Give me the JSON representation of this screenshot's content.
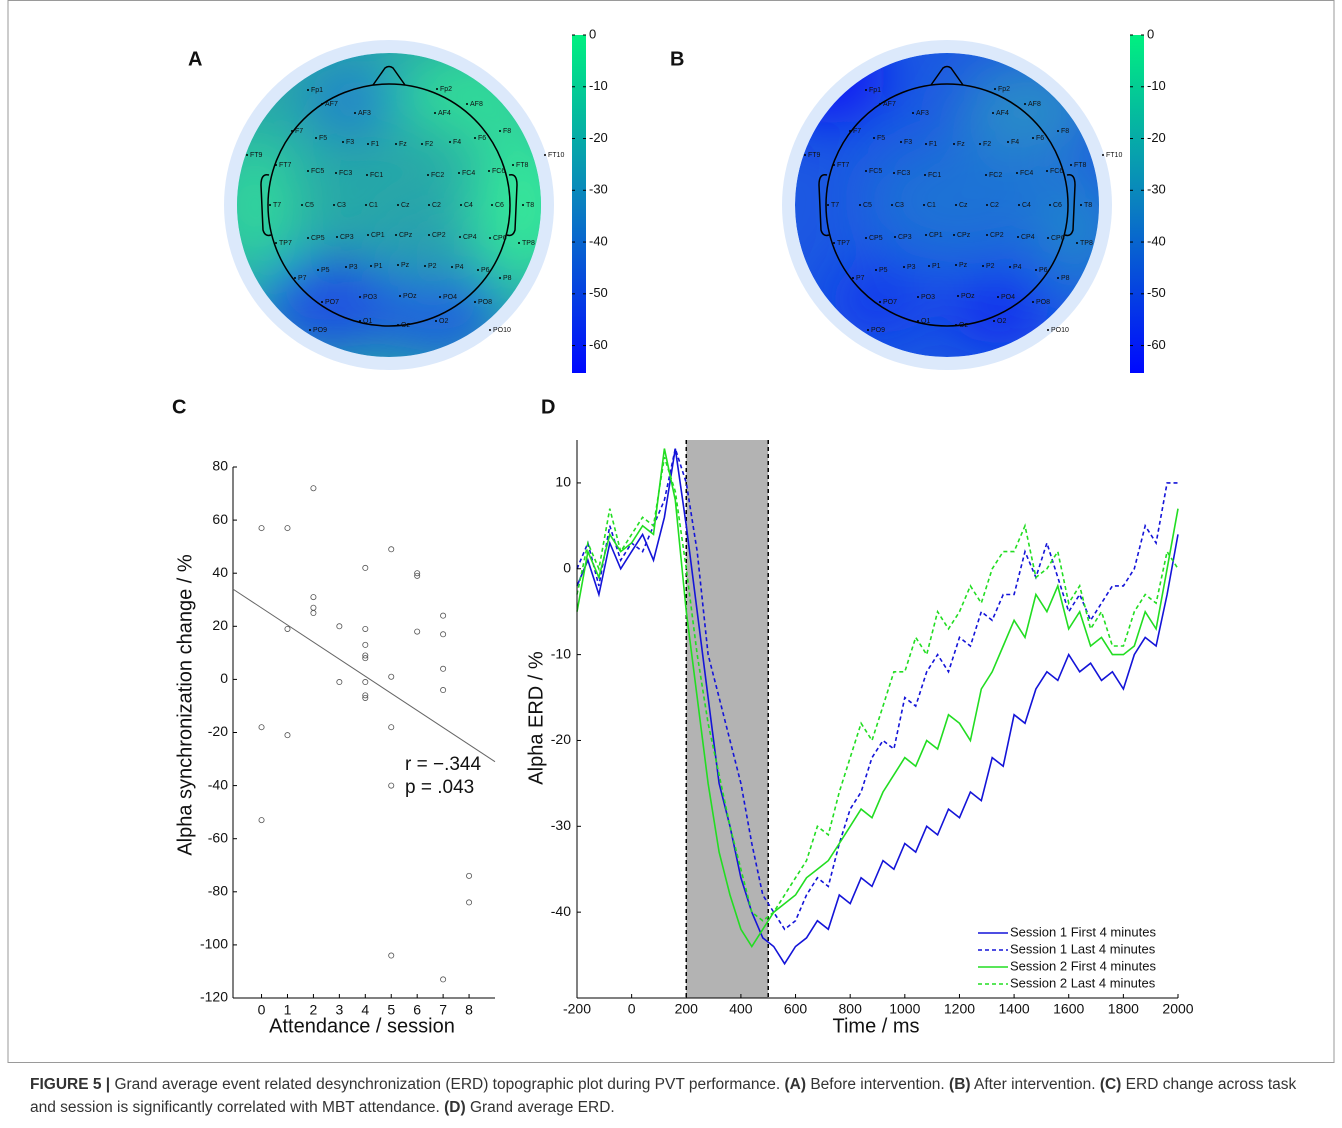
{
  "chart_data": [
    {
      "type": "topomap",
      "panel": "A",
      "clim": [
        -65.3,
        0
      ],
      "cticks": [
        0,
        -10,
        -20,
        -30,
        -40,
        -50,
        -60
      ],
      "electrodes": [
        "Fp1",
        "Fp2",
        "AF7",
        "AF3",
        "AF4",
        "AF8",
        "F7",
        "F5",
        "F3",
        "F1",
        "Fz",
        "F2",
        "F4",
        "F6",
        "F8",
        "FT9",
        "FT10",
        "FT7",
        "FC5",
        "FC3",
        "FC1",
        "FC2",
        "FC4",
        "FC6",
        "FT8",
        "T7",
        "C5",
        "C3",
        "C1",
        "Cz",
        "C2",
        "C4",
        "C6",
        "T8",
        "TP7",
        "CP5",
        "CP3",
        "CP1",
        "CPz",
        "CP2",
        "CP4",
        "CP6",
        "TP8",
        "P7",
        "P5",
        "P3",
        "P1",
        "Pz",
        "P2",
        "P4",
        "P6",
        "P8",
        "PO7",
        "PO3",
        "POz",
        "PO4",
        "PO8",
        "PO9",
        "O1",
        "Oz",
        "O2",
        "PO10"
      ]
    },
    {
      "type": "topomap",
      "panel": "B",
      "clim": [
        -65.3,
        0
      ],
      "cticks": [
        0,
        -10,
        -20,
        -30,
        -40,
        -50,
        -60
      ],
      "electrodes": [
        "Fp1",
        "Fp2",
        "AF7",
        "AF3",
        "AF4",
        "AF8",
        "F7",
        "F5",
        "F3",
        "F1",
        "Fz",
        "F2",
        "F4",
        "F6",
        "F8",
        "FT9",
        "FT10",
        "FT7",
        "FC5",
        "FC3",
        "FC1",
        "FC2",
        "FC4",
        "FC6",
        "FT8",
        "T7",
        "C5",
        "C3",
        "C1",
        "Cz",
        "C2",
        "C4",
        "C6",
        "T8",
        "TP7",
        "CP5",
        "CP3",
        "CP1",
        "CPz",
        "CP2",
        "CP4",
        "CP6",
        "TP8",
        "P7",
        "P5",
        "P3",
        "P1",
        "Pz",
        "P2",
        "P4",
        "P6",
        "P8",
        "PO7",
        "PO3",
        "POz",
        "PO4",
        "PO8",
        "PO9",
        "O1",
        "Oz",
        "O2",
        "PO10"
      ]
    },
    {
      "type": "scatter",
      "panel": "C",
      "xlabel": "Attendance / session",
      "ylabel": "Alpha synchronization change / %",
      "xlim": [
        -1.1,
        9
      ],
      "xticks": [
        0,
        1,
        2,
        3,
        4,
        5,
        6,
        7,
        8
      ],
      "ylim": [
        -120,
        80
      ],
      "yticks": [
        80,
        60,
        40,
        20,
        0,
        -20,
        -40,
        -60,
        -80,
        -100,
        -120
      ],
      "x": [
        0,
        0,
        0,
        1,
        1,
        1,
        2,
        2,
        2,
        2,
        3,
        3,
        4,
        4,
        4,
        4,
        4,
        4,
        4,
        4,
        5,
        5,
        5,
        5,
        5,
        6,
        6,
        6,
        7,
        7,
        7,
        7,
        7,
        8,
        8
      ],
      "y": [
        57,
        -18,
        -53,
        57,
        19,
        -21,
        72,
        31,
        27,
        25,
        20,
        -1,
        42,
        19,
        13,
        9,
        8,
        -1,
        -6,
        -7,
        49,
        1,
        -18,
        -40,
        -104,
        40,
        39,
        18,
        24,
        17,
        4,
        -4,
        -113,
        -74,
        -84
      ],
      "color": "#555555",
      "trendline": {
        "x": [
          -1.1,
          9
        ],
        "y": [
          34,
          -31
        ]
      },
      "annotations": [
        "r = −.344",
        "p = .043"
      ]
    },
    {
      "type": "line",
      "panel": "D",
      "xlabel": "Time / ms",
      "ylabel": "Alpha ERD / %",
      "xlim": [
        -200,
        2000
      ],
      "xticks": [
        -200,
        0,
        200,
        400,
        600,
        800,
        1000,
        1200,
        1400,
        1600,
        1800,
        2000
      ],
      "ylim": [
        -50,
        15
      ],
      "yticks": [
        10,
        0,
        -10,
        -20,
        -30,
        -40
      ],
      "shaded_span": [
        200,
        500
      ],
      "legend": "lower right",
      "x": [
        -200,
        -160,
        -120,
        -80,
        -40,
        0,
        40,
        80,
        120,
        160,
        200,
        240,
        280,
        320,
        360,
        400,
        440,
        480,
        520,
        560,
        600,
        640,
        680,
        720,
        760,
        800,
        840,
        880,
        920,
        960,
        1000,
        1040,
        1080,
        1120,
        1160,
        1200,
        1240,
        1280,
        1320,
        1360,
        1400,
        1440,
        1480,
        1520,
        1560,
        1600,
        1640,
        1680,
        1720,
        1760,
        1800,
        1840,
        1880,
        1920,
        1960,
        2000
      ],
      "series": [
        {
          "name": "Session 1 First 4 minutes",
          "color": "#1414d8",
          "dashed": false,
          "values": [
            -2,
            1,
            -3,
            3,
            0,
            2,
            4,
            1,
            6,
            14,
            5,
            -5,
            -15,
            -25,
            -30,
            -36,
            -40,
            -43,
            -44,
            -46,
            -44,
            -43,
            -41,
            -42,
            -38,
            -39,
            -36,
            -37,
            -34,
            -35,
            -32,
            -33,
            -30,
            -31,
            -28,
            -29,
            -26,
            -27,
            -22,
            -23,
            -17,
            -18,
            -14,
            -12,
            -13,
            -10,
            -12,
            -11,
            -13,
            -12,
            -14,
            -10,
            -8,
            -9,
            -3,
            4
          ]
        },
        {
          "name": "Session 1 Last 4 minutes",
          "color": "#1414d8",
          "dashed": true,
          "values": [
            0,
            3,
            -2,
            5,
            1,
            3,
            2,
            5,
            8,
            14,
            10,
            2,
            -10,
            -15,
            -20,
            -25,
            -32,
            -38,
            -40,
            -42,
            -41,
            -38,
            -36,
            -37,
            -32,
            -28,
            -26,
            -22,
            -20,
            -21,
            -15,
            -16,
            -12,
            -10,
            -12,
            -8,
            -9,
            -5,
            -6,
            -3,
            -3,
            2,
            -1,
            3,
            -1,
            -5,
            -3,
            -6,
            -4,
            -2,
            -2,
            0,
            5,
            3,
            10,
            10
          ]
        },
        {
          "name": "Session 2 First 4 minutes",
          "color": "#22dd22",
          "dashed": false,
          "values": [
            -5,
            2,
            -1,
            4,
            2,
            3,
            5,
            4,
            14,
            8,
            -5,
            -15,
            -25,
            -33,
            -38,
            -42,
            -44,
            -42,
            -40,
            -39,
            -38,
            -36,
            -35,
            -34,
            -32,
            -30,
            -28,
            -29,
            -26,
            -24,
            -22,
            -23,
            -20,
            -21,
            -17,
            -18,
            -20,
            -14,
            -12,
            -9,
            -6,
            -8,
            -3,
            -5,
            -2,
            -7,
            -5,
            -9,
            -8,
            -10,
            -10,
            -9,
            -5,
            -7,
            0,
            7
          ]
        },
        {
          "name": "Session 2 Last 4 minutes",
          "color": "#22dd22",
          "dashed": true,
          "values": [
            -3,
            3,
            0,
            7,
            2,
            4,
            6,
            5,
            13,
            9,
            0,
            -10,
            -18,
            -24,
            -30,
            -35,
            -40,
            -41,
            -40,
            -38,
            -36,
            -34,
            -30,
            -31,
            -26,
            -22,
            -18,
            -20,
            -16,
            -12,
            -12,
            -8,
            -10,
            -5,
            -7,
            -5,
            -2,
            -4,
            0,
            2,
            2,
            5,
            -1,
            0,
            2,
            -4,
            -2,
            -7,
            -5,
            -9,
            -9,
            -5,
            -3,
            -4,
            2,
            0
          ]
        }
      ]
    }
  ],
  "caption": [
    {
      "text": "FIGURE 5 |",
      "bold": true
    },
    {
      "text": " Grand average event related desynchronization (ERD) topographic plot during PVT performance. ",
      "bold": false
    },
    {
      "text": "(A)",
      "bold": true
    },
    {
      "text": " Before intervention. ",
      "bold": false
    },
    {
      "text": "(B)",
      "bold": true
    },
    {
      "text": " After intervention. ",
      "bold": false
    },
    {
      "text": "(C)",
      "bold": true
    },
    {
      "text": " ERD change across task and session is significantly correlated with MBT attendance. ",
      "bold": false
    },
    {
      "text": "(D)",
      "bold": true
    },
    {
      "text": " Grand average ERD.",
      "bold": false
    }
  ]
}
